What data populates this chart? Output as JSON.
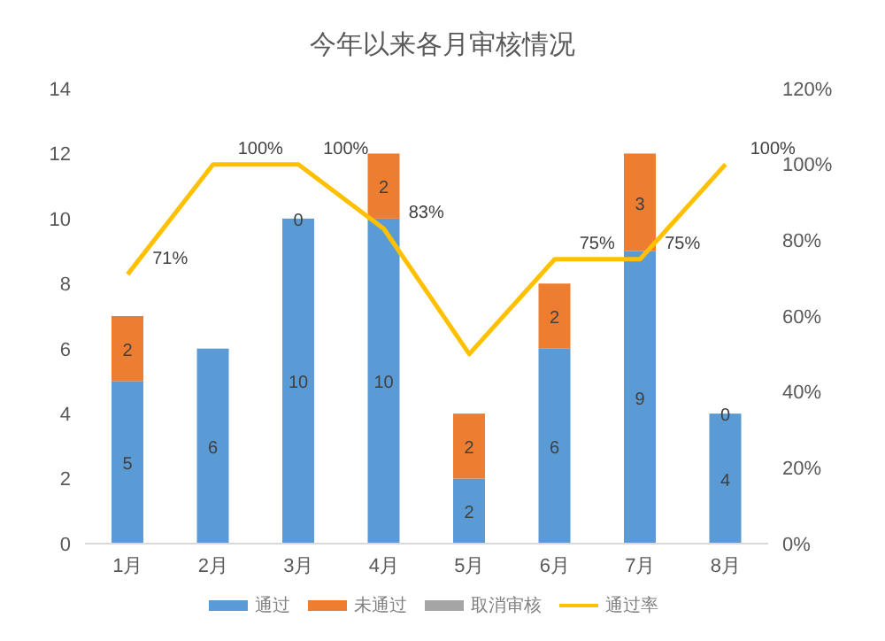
{
  "chart_data": {
    "type": "bar",
    "title": "今年以来各月审核情况",
    "categories": [
      "1月",
      "2月",
      "3月",
      "4月",
      "5月",
      "6月",
      "7月",
      "8月"
    ],
    "stacked": true,
    "series": [
      {
        "name": "通过",
        "color": "#5b9bd5",
        "values": [
          5,
          6,
          10,
          10,
          2,
          6,
          9,
          4
        ],
        "value_labels": [
          "5",
          "6",
          "10",
          "10",
          "2",
          "6",
          "9",
          "4"
        ]
      },
      {
        "name": "未通过",
        "color": "#ed7d31",
        "values": [
          2,
          0,
          0,
          2,
          2,
          2,
          3,
          0
        ],
        "value_labels": [
          "2",
          null,
          "0",
          "2",
          "2",
          "2",
          "3",
          "0"
        ]
      },
      {
        "name": "取消审核",
        "color": "#a5a5a5",
        "values": [
          0,
          0,
          0,
          0,
          0,
          0,
          0,
          0
        ]
      },
      {
        "name": "通过率",
        "type": "line",
        "axis": "y2",
        "color": "#ffc000",
        "values": [
          71,
          100,
          100,
          83,
          50,
          75,
          75,
          100
        ],
        "value_labels": [
          "71%",
          "100%",
          "100%",
          "83%",
          null,
          "75%",
          "75%",
          "100%"
        ]
      }
    ],
    "ylim": [
      0,
      14
    ],
    "yticks": [
      0,
      2,
      4,
      6,
      8,
      10,
      12,
      14
    ],
    "y2lim": [
      0,
      120
    ],
    "y2ticks": [
      {
        "value": 0,
        "label": "0%"
      },
      {
        "value": 20,
        "label": "20%"
      },
      {
        "value": 40,
        "label": "40%"
      },
      {
        "value": 60,
        "label": "60%"
      },
      {
        "value": 80,
        "label": "80%"
      },
      {
        "value": 100,
        "label": "100%"
      },
      {
        "value": 120,
        "label": "120%"
      }
    ],
    "grid": false,
    "legend": "bottom",
    "marker": "none"
  }
}
